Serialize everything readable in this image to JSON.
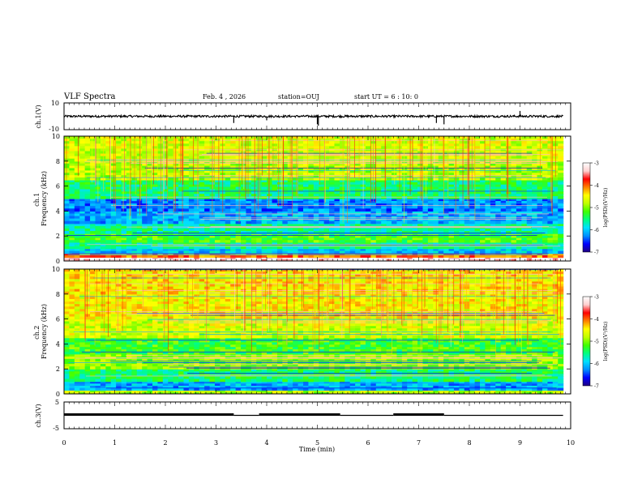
{
  "header": {
    "title": "VLF Spectra",
    "date": "Feb. 4 , 2026",
    "station": "station=OUJ",
    "start_ut": "start UT = 6 : 10: 0"
  },
  "colorscale": {
    "stops": [
      "#200080",
      "#0000ff",
      "#0090ff",
      "#00e0ff",
      "#00ff80",
      "#40ff00",
      "#c0ff00",
      "#ffff00",
      "#ff8000",
      "#ff0000",
      "#ffd0d0",
      "#ffffff"
    ]
  },
  "chart_data": [
    {
      "type": "line",
      "panel": "ch1-waveform",
      "ylabel": "ch.1(V)",
      "ylim": [
        -10,
        10
      ],
      "yticks": [
        "10",
        "-10"
      ],
      "baseline_value": 0.0,
      "spikes": [
        {
          "t": 3.35,
          "v": -5
        },
        {
          "t": 4.0,
          "v": -3
        },
        {
          "t": 5.0,
          "v": -6
        },
        {
          "t": 5.02,
          "v": -7
        },
        {
          "t": 7.35,
          "v": -5
        },
        {
          "t": 7.5,
          "v": -6
        },
        {
          "t": 9.0,
          "v": 4
        }
      ]
    },
    {
      "type": "heatmap",
      "panel": "ch1-spectrogram",
      "ylabel": "ch.1 Frequency (kHz)",
      "ylim": [
        0,
        10
      ],
      "yticks": [
        "0",
        "2",
        "4",
        "6",
        "8",
        "10"
      ],
      "colorbar_label": "log(PSD)(V²/Hz)",
      "colorbar_range": [
        -7,
        -3
      ],
      "colorbar_ticks": [
        "-3",
        "-4",
        "-5",
        "-6",
        "-7"
      ],
      "bands": [
        {
          "f0": 0.0,
          "f1": 0.3,
          "level": 0.95
        },
        {
          "f0": 0.3,
          "f1": 0.6,
          "level": 0.75
        },
        {
          "f0": 0.6,
          "f1": 1.0,
          "level": 0.25
        },
        {
          "f0": 1.0,
          "f1": 1.5,
          "level": 0.35
        },
        {
          "f0": 1.5,
          "f1": 2.2,
          "level": 0.45
        },
        {
          "f0": 2.2,
          "f1": 3.0,
          "level": 0.35
        },
        {
          "f0": 3.0,
          "f1": 4.0,
          "level": 0.22
        },
        {
          "f0": 4.0,
          "f1": 5.0,
          "level": 0.18
        },
        {
          "f0": 5.0,
          "f1": 6.5,
          "level": 0.38
        },
        {
          "f0": 6.5,
          "f1": 8.0,
          "level": 0.55
        },
        {
          "f0": 8.0,
          "f1": 10.0,
          "level": 0.58
        }
      ]
    },
    {
      "type": "heatmap",
      "panel": "ch2-spectrogram",
      "ylabel": "ch.2 Frequency (kHz)",
      "ylim": [
        0,
        10
      ],
      "yticks": [
        "0",
        "2",
        "4",
        "6",
        "8",
        "10"
      ],
      "colorbar_label": "log(PSD)(V²/Hz)",
      "colorbar_range": [
        -7,
        -3
      ],
      "colorbar_ticks": [
        "-3",
        "-4",
        "-5",
        "-6",
        "-7"
      ],
      "bands": [
        {
          "f0": 0.0,
          "f1": 0.3,
          "level": 0.55
        },
        {
          "f0": 0.3,
          "f1": 1.0,
          "level": 0.22
        },
        {
          "f0": 1.0,
          "f1": 2.0,
          "level": 0.38
        },
        {
          "f0": 2.0,
          "f1": 3.2,
          "level": 0.52
        },
        {
          "f0": 3.2,
          "f1": 4.5,
          "level": 0.44
        },
        {
          "f0": 4.5,
          "f1": 6.0,
          "level": 0.58
        },
        {
          "f0": 6.0,
          "f1": 8.0,
          "level": 0.62
        },
        {
          "f0": 8.0,
          "f1": 10.0,
          "level": 0.64
        }
      ]
    },
    {
      "type": "line",
      "panel": "ch3-trace",
      "ylabel": "ch.3(V)",
      "ylim": [
        -5,
        5
      ],
      "yticks": [
        "5",
        "-5"
      ],
      "segments": [
        {
          "t0": 0.0,
          "t1": 3.35,
          "v": 0.3,
          "w": "thick"
        },
        {
          "t0": 3.35,
          "t1": 3.85,
          "v": 0.0,
          "w": "thin"
        },
        {
          "t0": 3.85,
          "t1": 5.45,
          "v": 0.3,
          "w": "thick"
        },
        {
          "t0": 5.45,
          "t1": 6.5,
          "v": 0.0,
          "w": "thin"
        },
        {
          "t0": 6.5,
          "t1": 7.5,
          "v": 0.3,
          "w": "thick"
        },
        {
          "t0": 7.5,
          "t1": 9.85,
          "v": 0.0,
          "w": "thin"
        }
      ]
    }
  ],
  "xaxis": {
    "label": "Time (min)",
    "xlim": [
      0,
      10
    ],
    "ticks": [
      "0",
      "1",
      "2",
      "3",
      "4",
      "5",
      "6",
      "7",
      "8",
      "9",
      "10"
    ],
    "data_end": 9.85
  }
}
